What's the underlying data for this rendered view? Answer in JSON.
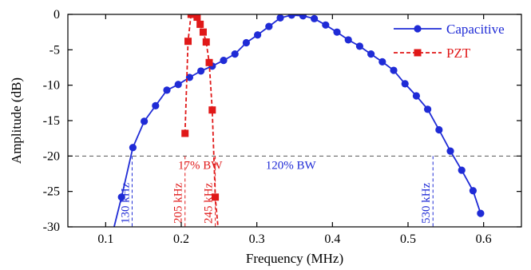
{
  "chart_data": {
    "type": "line",
    "xlabel": "Frequency (MHz)",
    "ylabel": "Amplitude (dB)",
    "xlim": [
      0.05,
      0.65
    ],
    "ylim": [
      -30,
      0
    ],
    "x_ticks": [
      {
        "v": 0.1,
        "label": "0.1"
      },
      {
        "v": 0.2,
        "label": "0.2"
      },
      {
        "v": 0.3,
        "label": "0.3"
      },
      {
        "v": 0.4,
        "label": "0.4"
      },
      {
        "v": 0.5,
        "label": "0.5"
      },
      {
        "v": 0.6,
        "label": "0.6"
      }
    ],
    "y_ticks": [
      {
        "v": 0,
        "label": "0"
      },
      {
        "v": -5,
        "label": "-5"
      },
      {
        "v": -10,
        "label": "-10"
      },
      {
        "v": -15,
        "label": "-15"
      },
      {
        "v": -20,
        "label": "-20"
      },
      {
        "v": -25,
        "label": "-25"
      },
      {
        "v": -30,
        "label": "-30"
      }
    ],
    "grid": false,
    "legend_position": "top-right",
    "series": [
      {
        "name": "Capacitive",
        "color": "#1f2bd6",
        "style": "solid",
        "marker": "circle",
        "x": [
          0.11,
          0.121,
          0.136,
          0.151,
          0.166,
          0.181,
          0.196,
          0.211,
          0.226,
          0.241,
          0.256,
          0.271,
          0.286,
          0.301,
          0.316,
          0.331,
          0.346,
          0.361,
          0.376,
          0.391,
          0.406,
          0.421,
          0.436,
          0.451,
          0.466,
          0.481,
          0.496,
          0.511,
          0.526,
          0.541,
          0.556,
          0.571,
          0.586,
          0.596
        ],
        "y": [
          -30.5,
          -25.8,
          -18.8,
          -15.1,
          -12.9,
          -10.7,
          -9.9,
          -8.9,
          -8.0,
          -7.3,
          -6.5,
          -5.6,
          -4.0,
          -2.9,
          -1.7,
          -0.5,
          -0.1,
          -0.2,
          -0.6,
          -1.5,
          -2.5,
          -3.6,
          -4.5,
          -5.6,
          -6.7,
          -7.9,
          -9.8,
          -11.5,
          -13.4,
          -16.3,
          -19.3,
          -22.0,
          -24.9,
          -28.1
        ]
      },
      {
        "name": "PZT",
        "color": "#e01818",
        "style": "dashed",
        "marker": "square",
        "x": [
          0.205,
          0.209,
          0.213,
          0.217,
          0.221,
          0.225,
          0.229,
          0.233,
          0.237,
          0.241,
          0.245,
          0.249
        ],
        "y": [
          -16.8,
          -3.8,
          0.0,
          0.0,
          -0.4,
          -1.4,
          -2.5,
          -3.9,
          -6.8,
          -13.5,
          -25.8,
          -30.5
        ]
      }
    ],
    "reference_line": {
      "y": -20,
      "color": "#555555",
      "style": "dashed"
    },
    "annotations": [
      {
        "text": "130 kHz",
        "x": 0.135,
        "color": "#1f2bd6"
      },
      {
        "text": "205 kHz",
        "x": 0.205,
        "color": "#e01818"
      },
      {
        "text": "245 kHz",
        "x": 0.245,
        "color": "#e01818"
      },
      {
        "text": "530 kHz",
        "x": 0.533,
        "color": "#1f2bd6"
      }
    ],
    "bandwidth_labels": [
      {
        "text": "17% BW",
        "x": 0.225,
        "y": -21.8,
        "color": "#e01818"
      },
      {
        "text": "120% BW",
        "x": 0.345,
        "y": -21.8,
        "color": "#1f2bd6"
      }
    ]
  }
}
